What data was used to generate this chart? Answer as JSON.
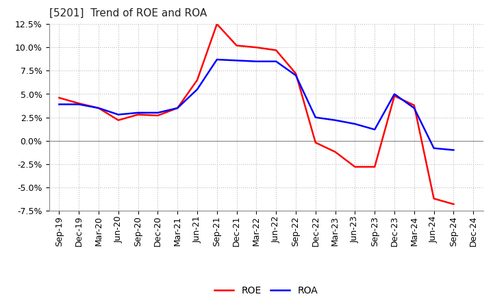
{
  "title": "[5201]  Trend of ROE and ROA",
  "labels": [
    "Sep-19",
    "Dec-19",
    "Mar-20",
    "Jun-20",
    "Sep-20",
    "Dec-20",
    "Mar-21",
    "Jun-21",
    "Sep-21",
    "Dec-21",
    "Mar-22",
    "Jun-22",
    "Sep-22",
    "Dec-22",
    "Mar-23",
    "Jun-23",
    "Sep-23",
    "Dec-23",
    "Mar-24",
    "Jun-24",
    "Sep-24",
    "Dec-24"
  ],
  "ROE": [
    4.6,
    4.0,
    3.5,
    2.2,
    2.8,
    2.7,
    3.5,
    6.5,
    12.5,
    10.2,
    10.0,
    9.7,
    7.2,
    -0.2,
    -1.2,
    -2.8,
    -2.8,
    4.8,
    3.8,
    -6.2,
    -6.8,
    null
  ],
  "ROA": [
    3.9,
    3.9,
    3.5,
    2.8,
    3.0,
    3.0,
    3.5,
    5.5,
    8.7,
    8.6,
    8.5,
    8.5,
    7.0,
    2.5,
    2.2,
    1.8,
    1.2,
    5.0,
    3.5,
    -0.8,
    -1.0,
    null
  ],
  "ROE_color": "#FF0000",
  "ROA_color": "#0000FF",
  "ylim": [
    -7.5,
    12.5
  ],
  "yticks": [
    -7.5,
    -5.0,
    -2.5,
    0.0,
    2.5,
    5.0,
    7.5,
    10.0,
    12.5
  ],
  "background_color": "#FFFFFF",
  "grid_color": "#BBBBBB",
  "linewidth": 1.8,
  "title_fontsize": 11,
  "tick_fontsize": 9,
  "legend_fontsize": 10
}
